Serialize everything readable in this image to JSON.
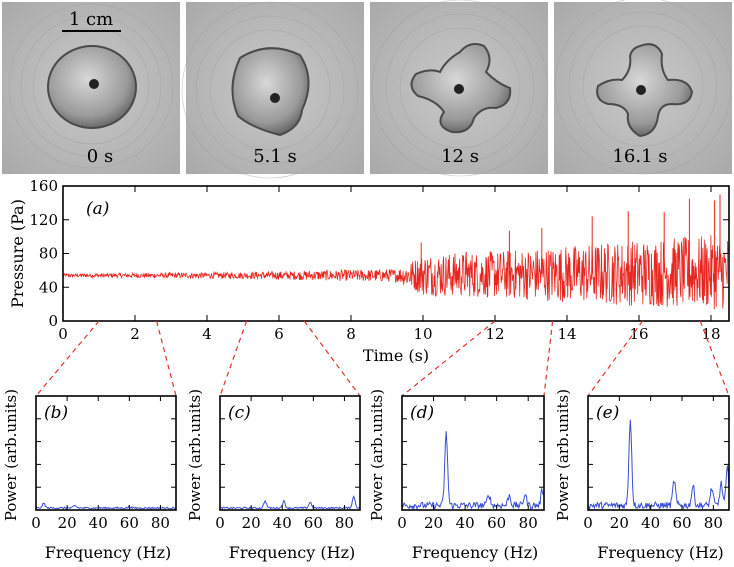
{
  "photos": {
    "scale_bar_label": "1 cm",
    "frames": [
      {
        "caption": "0 s",
        "shape": "disc"
      },
      {
        "caption": "5.1 s",
        "shape": "pentagon"
      },
      {
        "caption": "12 s",
        "shape": "four-arm"
      },
      {
        "caption": "16.1 s",
        "shape": "four-arm-deep"
      }
    ]
  },
  "colors": {
    "pressure_trace": "#e8261f",
    "spectrum_trace": "#3a4fd6",
    "zoom_lines": "#e0332c",
    "photo_bg": "#b9b9b9",
    "droplet": "#8b8b8b"
  },
  "chart_data": [
    {
      "type": "line",
      "panel": "(a)",
      "xlabel": "Time (s)",
      "ylabel": "Pressure (Pa)",
      "xlim": [
        0,
        18.5
      ],
      "ylim": [
        0,
        160
      ],
      "x_ticks": [
        0,
        2,
        4,
        6,
        8,
        10,
        12,
        14,
        16,
        18
      ],
      "y_ticks": [
        0,
        40,
        80,
        120,
        160
      ],
      "series": [
        {
          "name": "pressure",
          "description_points": [
            {
              "t": 0,
              "mean": 54,
              "amp": 2
            },
            {
              "t": 5.1,
              "mean": 54,
              "amp": 4
            },
            {
              "t": 9.3,
              "mean": 54,
              "amp": 8
            },
            {
              "t": 10.0,
              "mean": 55,
              "amp": 25
            },
            {
              "t": 12.0,
              "mean": 55,
              "amp": 28
            },
            {
              "t": 16.1,
              "mean": 57,
              "amp": 40
            },
            {
              "t": 18.5,
              "mean": 58,
              "amp": 45
            }
          ],
          "peaks": [
            [
              9.95,
              93
            ],
            [
              12.4,
              107
            ],
            [
              13.3,
              110
            ],
            [
              14.7,
              124
            ],
            [
              15.7,
              130
            ],
            [
              16.7,
              129
            ],
            [
              17.4,
              145
            ],
            [
              18.1,
              143
            ],
            [
              18.25,
              150
            ],
            [
              11.2,
              82
            ]
          ]
        }
      ]
    },
    {
      "type": "line",
      "panel": "(b)",
      "xlabel": "Frequency (Hz)",
      "ylabel": "Power (arb.units)",
      "xlim": [
        0,
        90
      ],
      "x_ticks": [
        0,
        20,
        40,
        60,
        80
      ],
      "zoom_time": 1.0,
      "series": [
        {
          "name": "spectrum",
          "peaks": [
            [
              5,
              0.04
            ],
            [
              25,
              0.02
            ],
            [
              60,
              0.01
            ]
          ]
        }
      ]
    },
    {
      "type": "line",
      "panel": "(c)",
      "xlabel": "Frequency (Hz)",
      "ylabel": "Power (arb.units)",
      "xlim": [
        0,
        90
      ],
      "x_ticks": [
        0,
        20,
        40,
        60,
        80
      ],
      "zoom_time": 5.1,
      "series": [
        {
          "name": "spectrum",
          "peaks": [
            [
              29,
              0.06
            ],
            [
              41,
              0.06
            ],
            [
              58,
              0.05
            ],
            [
              86,
              0.1
            ]
          ]
        }
      ]
    },
    {
      "type": "line",
      "panel": "(d)",
      "xlabel": "Frequency (Hz)",
      "ylabel": "Power (arb.units)",
      "xlim": [
        0,
        90
      ],
      "x_ticks": [
        0,
        20,
        40,
        60,
        80
      ],
      "zoom_time": 12.0,
      "series": [
        {
          "name": "spectrum",
          "peaks": [
            [
              28,
              0.63
            ],
            [
              55,
              0.1
            ],
            [
              68,
              0.09
            ],
            [
              78,
              0.1
            ],
            [
              89,
              0.14
            ]
          ]
        }
      ]
    },
    {
      "type": "line",
      "panel": "(e)",
      "xlabel": "Frequency (Hz)",
      "ylabel": "Power (arb.units)",
      "xlim": [
        0,
        90
      ],
      "x_ticks": [
        0,
        20,
        40,
        60,
        80
      ],
      "zoom_time": 16.1,
      "series": [
        {
          "name": "spectrum",
          "peaks": [
            [
              27,
              0.75
            ],
            [
              55,
              0.22
            ],
            [
              67,
              0.17
            ],
            [
              79,
              0.15
            ],
            [
              85,
              0.19
            ],
            [
              89,
              0.32
            ]
          ]
        }
      ]
    }
  ]
}
